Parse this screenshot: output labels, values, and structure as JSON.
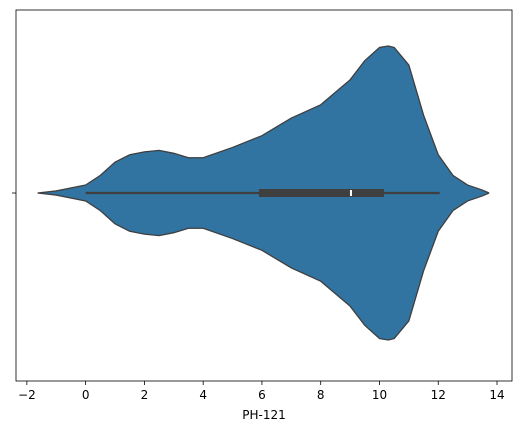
{
  "chart_data": {
    "type": "violin",
    "x_label": "PH-121",
    "categories": [
      null
    ],
    "color": "#3274a1",
    "edge_color": "#3f3f3f",
    "xlim": [
      -2.37,
      14.51
    ],
    "xticks": [
      {
        "value": -2,
        "label": "−2"
      },
      0,
      2,
      4,
      6,
      8,
      10,
      12,
      14
    ],
    "kde_x": [
      -1.63,
      -1,
      0,
      0.5,
      1,
      1.5,
      2,
      2.5,
      3,
      3.5,
      4,
      5,
      6,
      7,
      8,
      9,
      9.5,
      10,
      10.3,
      10.5,
      11,
      11.5,
      12,
      12.5,
      13,
      13.5,
      13.73
    ],
    "kde_density": [
      0,
      0.014,
      0.054,
      0.12,
      0.21,
      0.26,
      0.28,
      0.29,
      0.27,
      0.24,
      0.24,
      0.31,
      0.39,
      0.51,
      0.6,
      0.77,
      0.9,
      0.99,
      1,
      0.99,
      0.87,
      0.53,
      0.26,
      0.12,
      0.054,
      0.02,
      0
    ],
    "whisker_low": 0,
    "q1": 5.9,
    "median": 9.03,
    "q3": 10.15,
    "whisker_high": 12.05
  }
}
